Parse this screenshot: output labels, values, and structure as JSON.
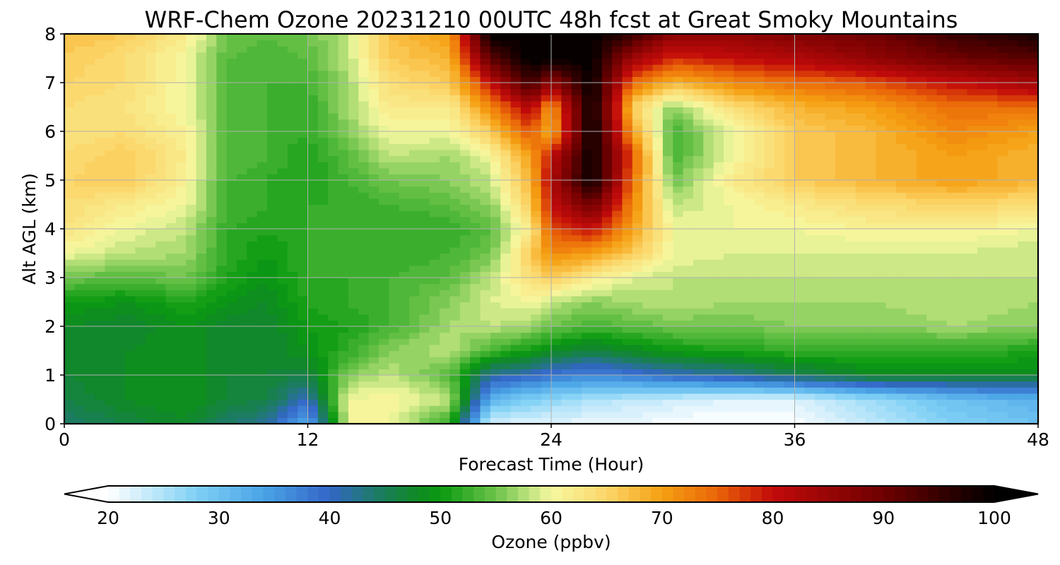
{
  "chart_data": {
    "type": "heatmap",
    "title": "WRF-Chem Ozone  20231210 00UTC 48h fcst at Great Smoky Mountains",
    "xlabel": "Forecast Time (Hour)",
    "ylabel": "Alt AGL (km)",
    "xlim": [
      0,
      48
    ],
    "ylim": [
      0,
      8
    ],
    "x_ticks": [
      "0",
      "12",
      "24",
      "36",
      "48"
    ],
    "y_ticks": [
      "0",
      "1",
      "2",
      "3",
      "4",
      "5",
      "6",
      "7",
      "8"
    ],
    "grid": true,
    "colorbar": {
      "label": "Ozone  (ppbv)",
      "min": 20,
      "max": 100,
      "extend": "both",
      "ticks": [
        "20",
        "30",
        "40",
        "50",
        "60",
        "70",
        "80",
        "90",
        "100"
      ],
      "stops": [
        {
          "value": 20,
          "color": "#ffffff"
        },
        {
          "value": 28,
          "color": "#7fd0f5"
        },
        {
          "value": 34,
          "color": "#4aa3e6"
        },
        {
          "value": 40,
          "color": "#3366c7"
        },
        {
          "value": 44,
          "color": "#1e7a6a"
        },
        {
          "value": 48,
          "color": "#0f8a22"
        },
        {
          "value": 50,
          "color": "#0a9a10"
        },
        {
          "value": 55,
          "color": "#6cc34a"
        },
        {
          "value": 60,
          "color": "#f6f8a0"
        },
        {
          "value": 65,
          "color": "#fcd66a"
        },
        {
          "value": 70,
          "color": "#f5a012"
        },
        {
          "value": 75,
          "color": "#ea6408"
        },
        {
          "value": 80,
          "color": "#c20a0a"
        },
        {
          "value": 90,
          "color": "#6e0000"
        },
        {
          "value": 100,
          "color": "#000000"
        }
      ]
    },
    "x": [
      0,
      3,
      6,
      8,
      10,
      12,
      14,
      16,
      19,
      21,
      23,
      24,
      26,
      28,
      30,
      33,
      36,
      40,
      44,
      48
    ],
    "y": [
      0,
      0.5,
      1,
      1.5,
      2,
      2.5,
      3,
      3.5,
      4,
      4.5,
      5,
      5.5,
      6,
      6.5,
      7,
      7.5,
      8
    ],
    "z": [
      [
        44,
        46,
        48,
        44,
        42,
        32,
        60,
        60,
        52,
        22,
        22,
        22,
        21,
        21,
        20,
        20,
        20,
        24,
        28,
        30
      ],
      [
        46,
        48,
        49,
        47,
        46,
        40,
        60,
        61,
        58,
        32,
        28,
        27,
        25,
        24,
        23,
        22,
        22,
        26,
        30,
        32
      ],
      [
        47,
        48,
        49,
        47,
        47,
        46,
        56,
        58,
        54,
        42,
        40,
        38,
        37,
        38,
        40,
        42,
        45,
        48,
        48,
        48
      ],
      [
        47,
        48,
        49,
        47,
        47,
        49,
        52,
        56,
        58,
        53,
        50,
        48,
        46,
        48,
        50,
        51,
        52,
        52,
        52,
        51
      ],
      [
        48,
        47,
        49,
        47,
        47,
        50,
        51,
        53,
        57,
        58,
        57,
        55,
        53,
        54,
        55,
        55,
        56,
        56,
        57,
        56
      ],
      [
        50,
        49,
        51,
        49,
        48,
        51,
        52,
        53,
        56,
        59,
        60,
        58,
        56,
        57,
        58,
        57,
        57,
        57,
        58,
        57
      ],
      [
        55,
        54,
        55,
        51,
        49,
        52,
        52,
        53,
        54,
        58,
        64,
        66,
        62,
        59,
        58,
        58,
        58,
        58,
        58,
        58
      ],
      [
        60,
        58,
        57,
        52,
        50,
        52,
        52,
        52,
        53,
        55,
        66,
        72,
        70,
        66,
        60,
        59,
        59,
        59,
        59,
        58
      ],
      [
        63,
        60,
        58,
        52,
        51,
        52,
        52,
        52,
        52,
        54,
        62,
        76,
        80,
        70,
        60,
        60,
        60,
        61,
        61,
        60
      ],
      [
        64,
        62,
        60,
        53,
        52,
        52,
        52,
        53,
        54,
        56,
        66,
        80,
        90,
        72,
        58,
        60,
        62,
        64,
        65,
        64
      ],
      [
        65,
        66,
        61,
        53,
        52,
        51,
        53,
        55,
        56,
        58,
        68,
        82,
        100,
        74,
        55,
        62,
        66,
        68,
        70,
        68
      ],
      [
        64,
        66,
        62,
        54,
        53,
        51,
        54,
        58,
        57,
        60,
        70,
        80,
        100,
        76,
        53,
        60,
        66,
        68,
        70,
        68
      ],
      [
        63,
        64,
        61,
        54,
        53,
        52,
        56,
        60,
        60,
        66,
        76,
        68,
        100,
        70,
        53,
        60,
        66,
        68,
        72,
        70
      ],
      [
        64,
        63,
        60,
        54,
        53,
        52,
        57,
        62,
        62,
        72,
        82,
        70,
        100,
        66,
        56,
        64,
        68,
        70,
        74,
        74
      ],
      [
        65,
        64,
        60,
        54,
        53,
        53,
        57,
        64,
        66,
        80,
        95,
        85,
        100,
        74,
        68,
        72,
        74,
        76,
        80,
        84
      ],
      [
        66,
        64,
        60,
        54,
        53,
        54,
        58,
        66,
        68,
        92,
        100,
        100,
        100,
        84,
        78,
        80,
        82,
        86,
        90,
        92
      ],
      [
        67,
        66,
        62,
        55,
        54,
        55,
        58,
        67,
        70,
        100,
        100,
        100,
        100,
        95,
        86,
        86,
        88,
        90,
        95,
        98
      ]
    ]
  }
}
